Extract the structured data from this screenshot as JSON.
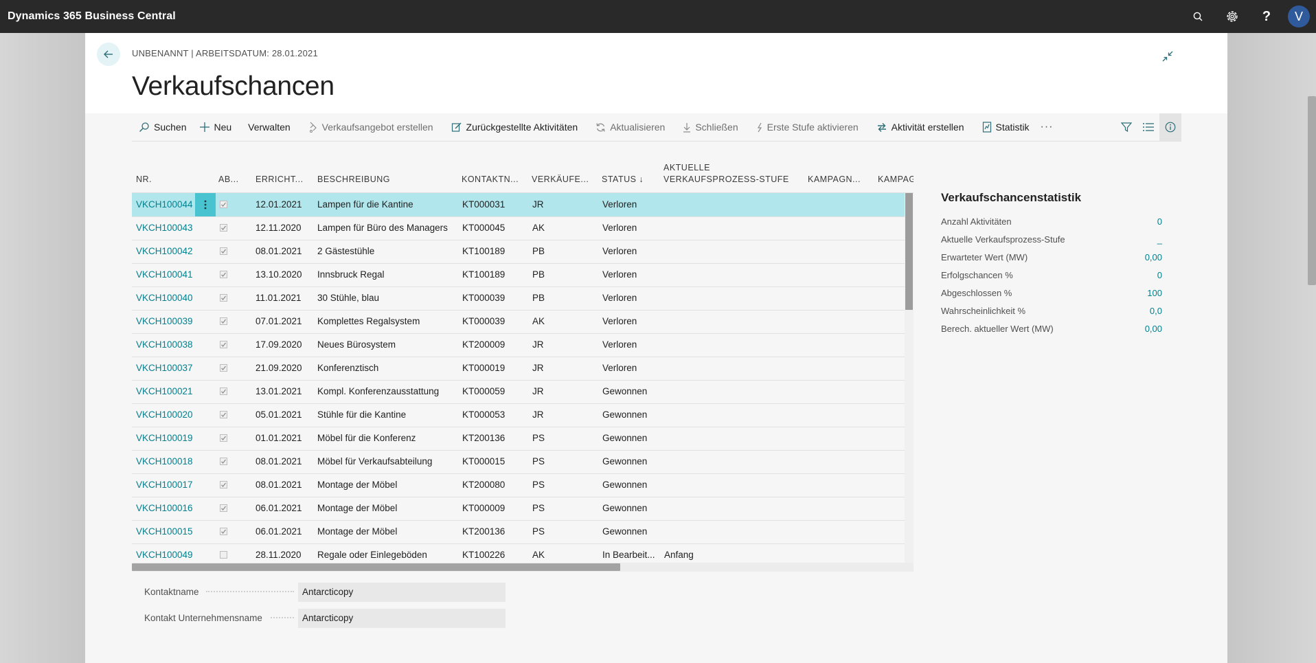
{
  "topbar": {
    "app_title": "Dynamics 365 Business Central",
    "avatar_initial": "V",
    "help_label": "?"
  },
  "header": {
    "breadcrumb": "UNBENANNT | ARBEITSDATUM: 28.01.2021",
    "title": "Verkaufschancen"
  },
  "actions": {
    "search": "Suchen",
    "new": "Neu",
    "manage": "Verwalten",
    "create_quote": "Verkaufsangebot erstellen",
    "postponed": "Zurückgestellte Aktivitäten",
    "update": "Aktualisieren",
    "close": "Schließen",
    "activate_first": "Erste Stufe aktivieren",
    "create_activity": "Aktivität erstellen",
    "statistics": "Statistik",
    "more": "···"
  },
  "columns": {
    "nr": "NR.",
    "ab": "AB...",
    "errichtet": "ERRICHT...",
    "beschreibung": "BESCHREIBUNG",
    "kontakt": "KONTAKTN...",
    "verkaeufer": "VERKÄUFE...",
    "status": "STATUS ↓",
    "stufe_line1": "AKTUELLE",
    "stufe_line2": "VERKAUFSPROZESS-STUFE",
    "kampagne1": "KAMPAGN...",
    "kampagne2": "KAMPAGNE"
  },
  "rows": [
    {
      "nr": "VKCH100044",
      "closed": true,
      "date": "12.01.2021",
      "desc": "Lampen für die Kantine",
      "contact": "KT000031",
      "sp": "JR",
      "status": "Verloren",
      "stage": ""
    },
    {
      "nr": "VKCH100043",
      "closed": true,
      "date": "12.11.2020",
      "desc": "Lampen für Büro des Managers",
      "contact": "KT000045",
      "sp": "AK",
      "status": "Verloren",
      "stage": ""
    },
    {
      "nr": "VKCH100042",
      "closed": true,
      "date": "08.01.2021",
      "desc": "2 Gästestühle",
      "contact": "KT100189",
      "sp": "PB",
      "status": "Verloren",
      "stage": ""
    },
    {
      "nr": "VKCH100041",
      "closed": true,
      "date": "13.10.2020",
      "desc": "Innsbruck Regal",
      "contact": "KT100189",
      "sp": "PB",
      "status": "Verloren",
      "stage": ""
    },
    {
      "nr": "VKCH100040",
      "closed": true,
      "date": "11.01.2021",
      "desc": "30 Stühle, blau",
      "contact": "KT000039",
      "sp": "PB",
      "status": "Verloren",
      "stage": ""
    },
    {
      "nr": "VKCH100039",
      "closed": true,
      "date": "07.01.2021",
      "desc": "Komplettes Regalsystem",
      "contact": "KT000039",
      "sp": "AK",
      "status": "Verloren",
      "stage": ""
    },
    {
      "nr": "VKCH100038",
      "closed": true,
      "date": "17.09.2020",
      "desc": "Neues Bürosystem",
      "contact": "KT200009",
      "sp": "JR",
      "status": "Verloren",
      "stage": ""
    },
    {
      "nr": "VKCH100037",
      "closed": true,
      "date": "21.09.2020",
      "desc": "Konferenztisch",
      "contact": "KT000019",
      "sp": "JR",
      "status": "Verloren",
      "stage": ""
    },
    {
      "nr": "VKCH100021",
      "closed": true,
      "date": "13.01.2021",
      "desc": "Kompl. Konferenzausstattung",
      "contact": "KT000059",
      "sp": "JR",
      "status": "Gewonnen",
      "stage": ""
    },
    {
      "nr": "VKCH100020",
      "closed": true,
      "date": "05.01.2021",
      "desc": "Stühle für die Kantine",
      "contact": "KT000053",
      "sp": "JR",
      "status": "Gewonnen",
      "stage": ""
    },
    {
      "nr": "VKCH100019",
      "closed": true,
      "date": "01.01.2021",
      "desc": "Möbel für die Konferenz",
      "contact": "KT200136",
      "sp": "PS",
      "status": "Gewonnen",
      "stage": ""
    },
    {
      "nr": "VKCH100018",
      "closed": true,
      "date": "08.01.2021",
      "desc": "Möbel für Verkaufsabteilung",
      "contact": "KT000015",
      "sp": "PS",
      "status": "Gewonnen",
      "stage": ""
    },
    {
      "nr": "VKCH100017",
      "closed": true,
      "date": "08.01.2021",
      "desc": "Montage der Möbel",
      "contact": "KT200080",
      "sp": "PS",
      "status": "Gewonnen",
      "stage": ""
    },
    {
      "nr": "VKCH100016",
      "closed": true,
      "date": "06.01.2021",
      "desc": "Montage der Möbel",
      "contact": "KT000009",
      "sp": "PS",
      "status": "Gewonnen",
      "stage": ""
    },
    {
      "nr": "VKCH100015",
      "closed": true,
      "date": "06.01.2021",
      "desc": "Montage der Möbel",
      "contact": "KT200136",
      "sp": "PS",
      "status": "Gewonnen",
      "stage": ""
    },
    {
      "nr": "VKCH100049",
      "closed": false,
      "date": "28.11.2020",
      "desc": "Regale oder Einlegeböden",
      "contact": "KT100226",
      "sp": "AK",
      "status": "In Bearbeit...",
      "stage": "Anfang"
    }
  ],
  "factbox": {
    "title": "Verkaufschancenstatistik",
    "items": [
      {
        "label": "Anzahl Aktivitäten",
        "value": "0"
      },
      {
        "label": "Aktuelle Verkaufsprozess-Stufe",
        "value": "_"
      },
      {
        "label": "Erwarteter Wert (MW)",
        "value": "0,00"
      },
      {
        "label": "Erfolgschancen %",
        "value": "0"
      },
      {
        "label": "Abgeschlossen %",
        "value": "100"
      },
      {
        "label": "Wahrscheinlichkeit %",
        "value": "0,0"
      },
      {
        "label": "Berech. aktueller Wert (MW)",
        "value": "0,00"
      }
    ]
  },
  "details": {
    "contact_name_label": "Kontaktname",
    "contact_name_value": "Antarcticopy",
    "company_name_label": "Kontakt Unternehmensname",
    "company_name_value": "Antarcticopy"
  },
  "colors": {
    "accent": "#00818f",
    "selected_row": "#b1e7ec",
    "row_menu": "#48c3cf",
    "topbar": "#292929",
    "avatar": "#2f5a9b"
  }
}
